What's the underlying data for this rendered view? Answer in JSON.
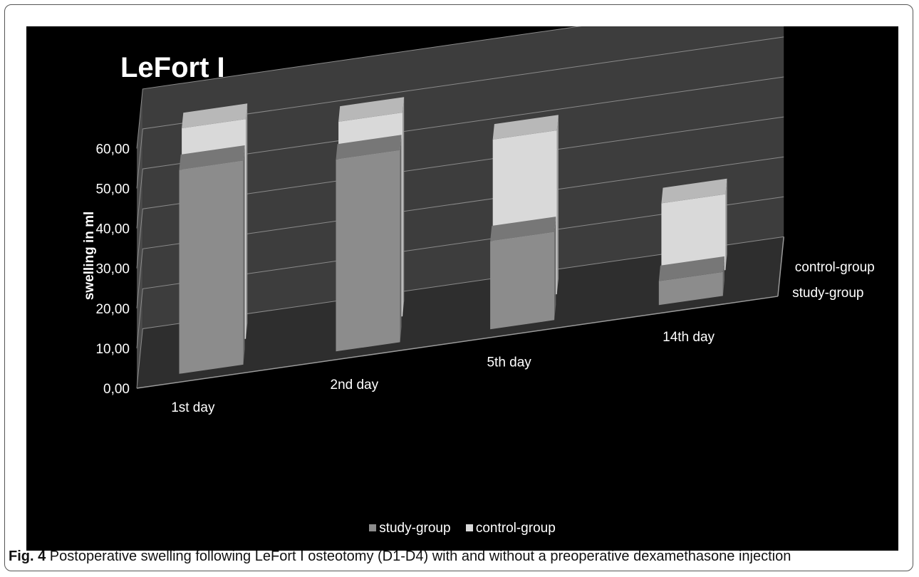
{
  "chart_data": {
    "type": "bar",
    "title": "LeFort I",
    "ylabel": "swelling in ml",
    "ylim": [
      0,
      60
    ],
    "yticks": [
      "0,00",
      "10,00",
      "20,00",
      "30,00",
      "40,00",
      "50,00",
      "60,00"
    ],
    "categories": [
      "1st day",
      "2nd day",
      "5th day",
      "14th day"
    ],
    "depth_labels": [
      "control-group",
      "study-group"
    ],
    "series": [
      {
        "name": "study-group",
        "values": [
          51,
          48,
          22,
          6
        ],
        "color": "#8c8c8c"
      },
      {
        "name": "control-group",
        "values": [
          55,
          51,
          41,
          19
        ],
        "color": "#d9d9d9"
      }
    ],
    "legend": [
      "study-group",
      "control-group"
    ],
    "legend_position": "bottom"
  },
  "caption": {
    "label": "Fig. 4",
    "text": "Postoperative swelling following LeFort I osteotomy (D1-D4) with and without a preoperative dexamethasone injection"
  }
}
